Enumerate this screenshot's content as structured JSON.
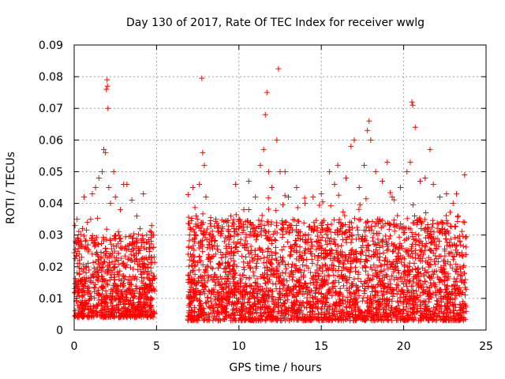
{
  "chart_data": {
    "type": "scatter",
    "title": "Day 130 of 2017, Rate Of TEC Index for receiver wwlg",
    "xlabel": "GPS time / hours",
    "ylabel": "ROTI / TECUs",
    "xlim": [
      0,
      25
    ],
    "ylim": [
      0,
      0.09
    ],
    "x_ticks": [
      0,
      5,
      10,
      15,
      20,
      25
    ],
    "x_tick_labels": [
      "0",
      "5",
      "10",
      "15",
      "20",
      "25"
    ],
    "y_ticks": [
      0,
      0.01,
      0.02,
      0.03,
      0.04,
      0.05,
      0.06,
      0.07,
      0.08,
      0.09
    ],
    "y_tick_labels": [
      "0",
      "0.01",
      "0.02",
      "0.03",
      "0.04",
      "0.05",
      "0.06",
      "0.07",
      "0.08",
      "0.09"
    ],
    "grid": true,
    "marker": "+",
    "color": "#ff0000",
    "data_gap_hours": [
      4.9,
      6.9
    ],
    "series": [
      {
        "name": "ROTI",
        "points": [
          [
            0.05,
            0.033
          ],
          [
            0.1,
            0.028
          ],
          [
            0.2,
            0.021
          ],
          [
            0.3,
            0.024
          ],
          [
            0.5,
            0.032
          ],
          [
            0.6,
            0.042
          ],
          [
            0.8,
            0.034
          ],
          [
            1.0,
            0.035
          ],
          [
            1.1,
            0.043
          ],
          [
            1.3,
            0.045
          ],
          [
            1.5,
            0.048
          ],
          [
            1.7,
            0.05
          ],
          [
            1.8,
            0.057
          ],
          [
            1.9,
            0.056
          ],
          [
            1.95,
            0.076
          ],
          [
            2.0,
            0.079
          ],
          [
            2.02,
            0.077
          ],
          [
            2.05,
            0.07
          ],
          [
            2.1,
            0.045
          ],
          [
            2.2,
            0.04
          ],
          [
            2.4,
            0.05
          ],
          [
            2.5,
            0.042
          ],
          [
            2.8,
            0.038
          ],
          [
            3.0,
            0.046
          ],
          [
            3.2,
            0.046
          ],
          [
            3.5,
            0.041
          ],
          [
            3.8,
            0.036
          ],
          [
            4.0,
            0.032
          ],
          [
            4.2,
            0.043
          ],
          [
            4.4,
            0.03
          ],
          [
            4.7,
            0.033
          ],
          [
            4.8,
            0.026
          ],
          [
            7.0,
            0.03
          ],
          [
            7.2,
            0.045
          ],
          [
            7.4,
            0.036
          ],
          [
            7.6,
            0.046
          ],
          [
            7.75,
            0.0795
          ],
          [
            7.8,
            0.056
          ],
          [
            7.9,
            0.052
          ],
          [
            8.0,
            0.042
          ],
          [
            8.2,
            0.03
          ],
          [
            8.6,
            0.035
          ],
          [
            9.0,
            0.032
          ],
          [
            9.5,
            0.036
          ],
          [
            9.8,
            0.046
          ],
          [
            10.0,
            0.035
          ],
          [
            10.3,
            0.038
          ],
          [
            10.6,
            0.047
          ],
          [
            11.0,
            0.042
          ],
          [
            11.3,
            0.052
          ],
          [
            11.5,
            0.057
          ],
          [
            11.6,
            0.068
          ],
          [
            11.7,
            0.075
          ],
          [
            11.8,
            0.05
          ],
          [
            12.0,
            0.045
          ],
          [
            12.3,
            0.06
          ],
          [
            12.4,
            0.0825
          ],
          [
            12.5,
            0.05
          ],
          [
            12.8,
            0.05
          ],
          [
            13.0,
            0.042
          ],
          [
            13.5,
            0.045
          ],
          [
            14.0,
            0.04
          ],
          [
            14.5,
            0.042
          ],
          [
            15.0,
            0.043
          ],
          [
            15.5,
            0.05
          ],
          [
            15.8,
            0.046
          ],
          [
            16.0,
            0.052
          ],
          [
            16.5,
            0.048
          ],
          [
            16.8,
            0.058
          ],
          [
            17.0,
            0.06
          ],
          [
            17.3,
            0.045
          ],
          [
            17.6,
            0.052
          ],
          [
            17.8,
            0.063
          ],
          [
            17.9,
            0.066
          ],
          [
            18.0,
            0.06
          ],
          [
            18.3,
            0.05
          ],
          [
            18.7,
            0.047
          ],
          [
            19.0,
            0.053
          ],
          [
            19.3,
            0.042
          ],
          [
            19.8,
            0.045
          ],
          [
            20.2,
            0.05
          ],
          [
            20.4,
            0.053
          ],
          [
            20.5,
            0.072
          ],
          [
            20.55,
            0.071
          ],
          [
            20.7,
            0.064
          ],
          [
            21.0,
            0.047
          ],
          [
            21.3,
            0.048
          ],
          [
            21.6,
            0.057
          ],
          [
            21.8,
            0.046
          ],
          [
            22.2,
            0.042
          ],
          [
            22.6,
            0.043
          ],
          [
            23.0,
            0.04
          ],
          [
            23.3,
            0.036
          ],
          [
            23.7,
            0.049
          ]
        ],
        "dense_band": [
          {
            "x_start": 0.0,
            "x_end": 4.9,
            "y_min": 0.004,
            "y_max": 0.03
          },
          {
            "x_start": 6.9,
            "x_end": 23.8,
            "y_min": 0.003,
            "y_max": 0.035
          }
        ]
      }
    ]
  }
}
